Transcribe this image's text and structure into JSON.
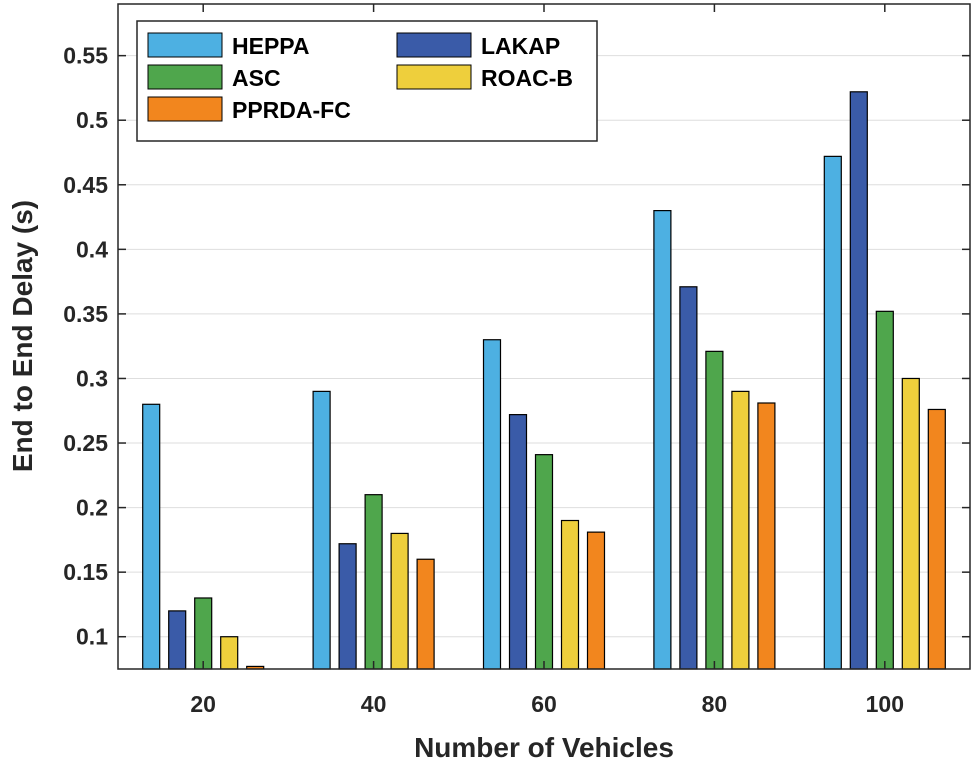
{
  "chart_data": {
    "type": "bar",
    "title": "",
    "xlabel": "Number of Vehicles",
    "ylabel": "End to End Delay (s)",
    "categories": [
      "20",
      "40",
      "60",
      "80",
      "100"
    ],
    "ylim": [
      0.075,
      0.59
    ],
    "yticks": [
      0.1,
      0.15,
      0.2,
      0.25,
      0.3,
      0.35,
      0.4,
      0.45,
      0.5,
      0.55
    ],
    "ytick_labels": [
      "0.1",
      "0.15",
      "0.2",
      "0.25",
      "0.3",
      "0.35",
      "0.4",
      "0.45",
      "0.5",
      "0.55"
    ],
    "grid": true,
    "legend_position": "top-left",
    "series": [
      {
        "name": "HEPPA",
        "color": "#4DB0E2",
        "values": [
          0.28,
          0.29,
          0.33,
          0.43,
          0.472
        ]
      },
      {
        "name": "LAKAP",
        "color": "#3A5BA8",
        "values": [
          0.12,
          0.172,
          0.272,
          0.371,
          0.522
        ]
      },
      {
        "name": "ASC",
        "color": "#4FA64C",
        "values": [
          0.13,
          0.21,
          0.241,
          0.321,
          0.352
        ]
      },
      {
        "name": "ROAC-B",
        "color": "#EECF3C",
        "values": [
          0.1,
          0.18,
          0.19,
          0.29,
          0.3
        ]
      },
      {
        "name": "PPRDA-FC",
        "color": "#F2861E",
        "values": [
          0.077,
          0.16,
          0.181,
          0.281,
          0.276
        ]
      }
    ]
  }
}
